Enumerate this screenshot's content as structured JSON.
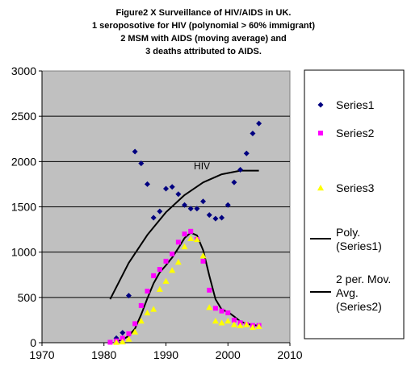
{
  "title_lines": [
    "Figure2 X  Surveillance of HIV/AIDS in UK.",
    "1 seroposotive for HIV (polynomial > 60% immigrant)",
    "2  MSM with AIDS (moving average) and",
    "3  deaths attributed to AIDS."
  ],
  "chart_data": {
    "type": "scatter",
    "xlim": [
      1970,
      2010
    ],
    "ylim": [
      0,
      3000
    ],
    "x_ticks": [
      1970,
      1980,
      1990,
      2000,
      2010
    ],
    "y_ticks": [
      0,
      500,
      1000,
      1500,
      2000,
      2500,
      3000
    ],
    "grid": "horizontal",
    "legend_position": "right",
    "annotation": "HIV",
    "series": [
      {
        "name": "Series1",
        "marker": "diamond",
        "color": "#000080",
        "x": [
          1982,
          1983,
          1984,
          1985,
          1986,
          1987,
          1988,
          1989,
          1990,
          1991,
          1992,
          1993,
          1994,
          1995,
          1996,
          1997,
          1998,
          1999,
          2000,
          2001,
          2002,
          2003,
          2004,
          2005
        ],
        "y": [
          50,
          110,
          520,
          2110,
          1980,
          1750,
          1380,
          1450,
          1700,
          1720,
          1640,
          1520,
          1480,
          1480,
          1560,
          1410,
          1370,
          1380,
          1520,
          1770,
          1910,
          2090,
          2310,
          2420
        ]
      },
      {
        "name": "Series2",
        "marker": "square",
        "color": "#ff00ff",
        "x": [
          1981,
          1982,
          1983,
          1984,
          1985,
          1986,
          1987,
          1988,
          1989,
          1990,
          1991,
          1992,
          1993,
          1994,
          1995,
          1996,
          1997,
          1998,
          1999,
          2000,
          2001,
          2002,
          2003,
          2004,
          2005
        ],
        "y": [
          5,
          20,
          50,
          100,
          210,
          410,
          570,
          740,
          810,
          900,
          980,
          1110,
          1200,
          1230,
          1140,
          900,
          580,
          380,
          350,
          330,
          250,
          220,
          200,
          190,
          190
        ]
      },
      {
        "name": "Series3",
        "marker": "triangle",
        "color": "#ffff00",
        "x": [
          1982,
          1983,
          1984,
          1985,
          1986,
          1987,
          1988,
          1989,
          1990,
          1991,
          1992,
          1993,
          1994,
          1995,
          1996,
          1997,
          1998,
          1999,
          2000,
          2001,
          2002,
          2003,
          2004,
          2005
        ],
        "y": [
          5,
          10,
          40,
          120,
          240,
          330,
          370,
          590,
          680,
          800,
          890,
          1060,
          1150,
          1140,
          960,
          390,
          240,
          220,
          240,
          200,
          190,
          200,
          170,
          180
        ]
      }
    ],
    "lines": [
      {
        "name": "Poly. (Series1)",
        "color": "#000000",
        "x": [
          1981,
          1984,
          1987,
          1990,
          1993,
          1996,
          1999,
          2002,
          2005
        ],
        "y": [
          480,
          880,
          1190,
          1440,
          1630,
          1770,
          1860,
          1900,
          1900
        ]
      },
      {
        "name": "2 per. Mov. Avg. (Series2)",
        "color": "#000000",
        "x": [
          1982,
          1983,
          1984,
          1985,
          1986,
          1987,
          1988,
          1989,
          1990,
          1991,
          1992,
          1993,
          1994,
          1995,
          1996,
          1997,
          1998,
          1999,
          2000,
          2001,
          2002,
          2003,
          2004,
          2005
        ],
        "y": [
          12,
          35,
          75,
          155,
          310,
          490,
          655,
          775,
          855,
          940,
          1045,
          1155,
          1215,
          1185,
          1020,
          740,
          480,
          365,
          340,
          290,
          235,
          210,
          195,
          190
        ]
      }
    ],
    "legend": [
      {
        "label_lines": [
          "Series1"
        ],
        "kind": "diamond",
        "color": "#000080"
      },
      {
        "label_lines": [
          "Series2"
        ],
        "kind": "square",
        "color": "#ff00ff"
      },
      {
        "label_lines": [
          "Series3"
        ],
        "kind": "triangle",
        "color": "#ffff00"
      },
      {
        "label_lines": [
          "Poly.",
          "(Series1)"
        ],
        "kind": "line",
        "color": "#000000"
      },
      {
        "label_lines": [
          "2 per. Mov.",
          "Avg.",
          "(Series2)"
        ],
        "kind": "line",
        "color": "#000000"
      }
    ]
  }
}
